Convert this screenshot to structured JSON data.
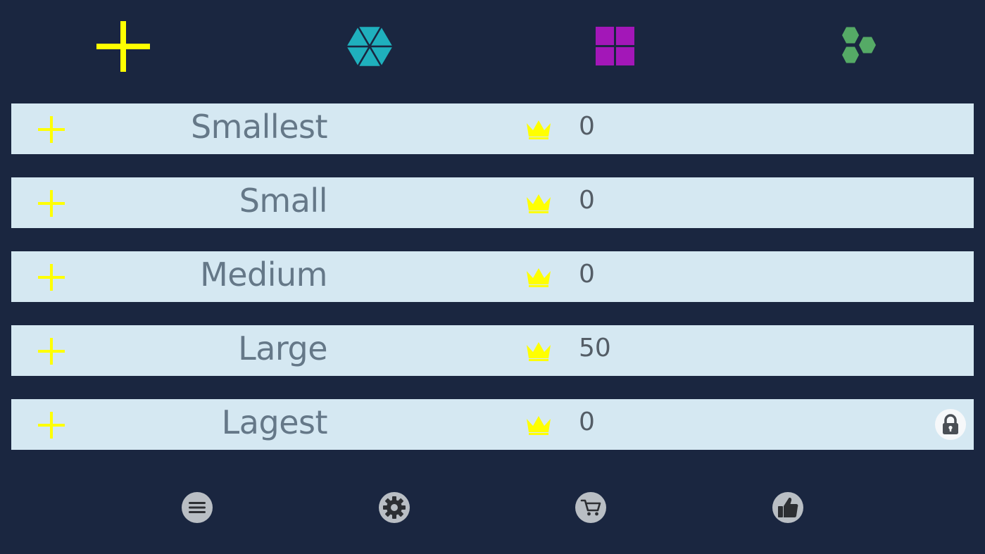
{
  "mode_tabs": [
    {
      "icon": "plus-shape-icon",
      "color": "#ffff00"
    },
    {
      "icon": "hexagon-triangles-icon",
      "color": "#1fb0bd"
    },
    {
      "icon": "square-grid-icon",
      "color": "#a317b8"
    },
    {
      "icon": "hex-cluster-icon",
      "color": "#55aa66"
    }
  ],
  "levels": [
    {
      "name": "Smallest",
      "score": "0",
      "icon": "crown-icon",
      "locked": false
    },
    {
      "name": "Small",
      "score": "0",
      "icon": "crown-icon",
      "locked": false
    },
    {
      "name": "Medium",
      "score": "0",
      "icon": "crown-icon",
      "locked": false
    },
    {
      "name": "Large",
      "score": "50",
      "icon": "crown-icon",
      "locked": false
    },
    {
      "name": "Lagest",
      "score": "0",
      "icon": "crown-icon",
      "locked": true
    }
  ],
  "bottom_buttons": [
    {
      "icon": "menu-icon"
    },
    {
      "icon": "gear-icon"
    },
    {
      "icon": "cart-icon"
    },
    {
      "icon": "thumbs-up-icon"
    }
  ],
  "colors": {
    "background": "#1a2640",
    "row": "#d5e8f2",
    "accent": "#ffff00",
    "text": "#657888"
  }
}
